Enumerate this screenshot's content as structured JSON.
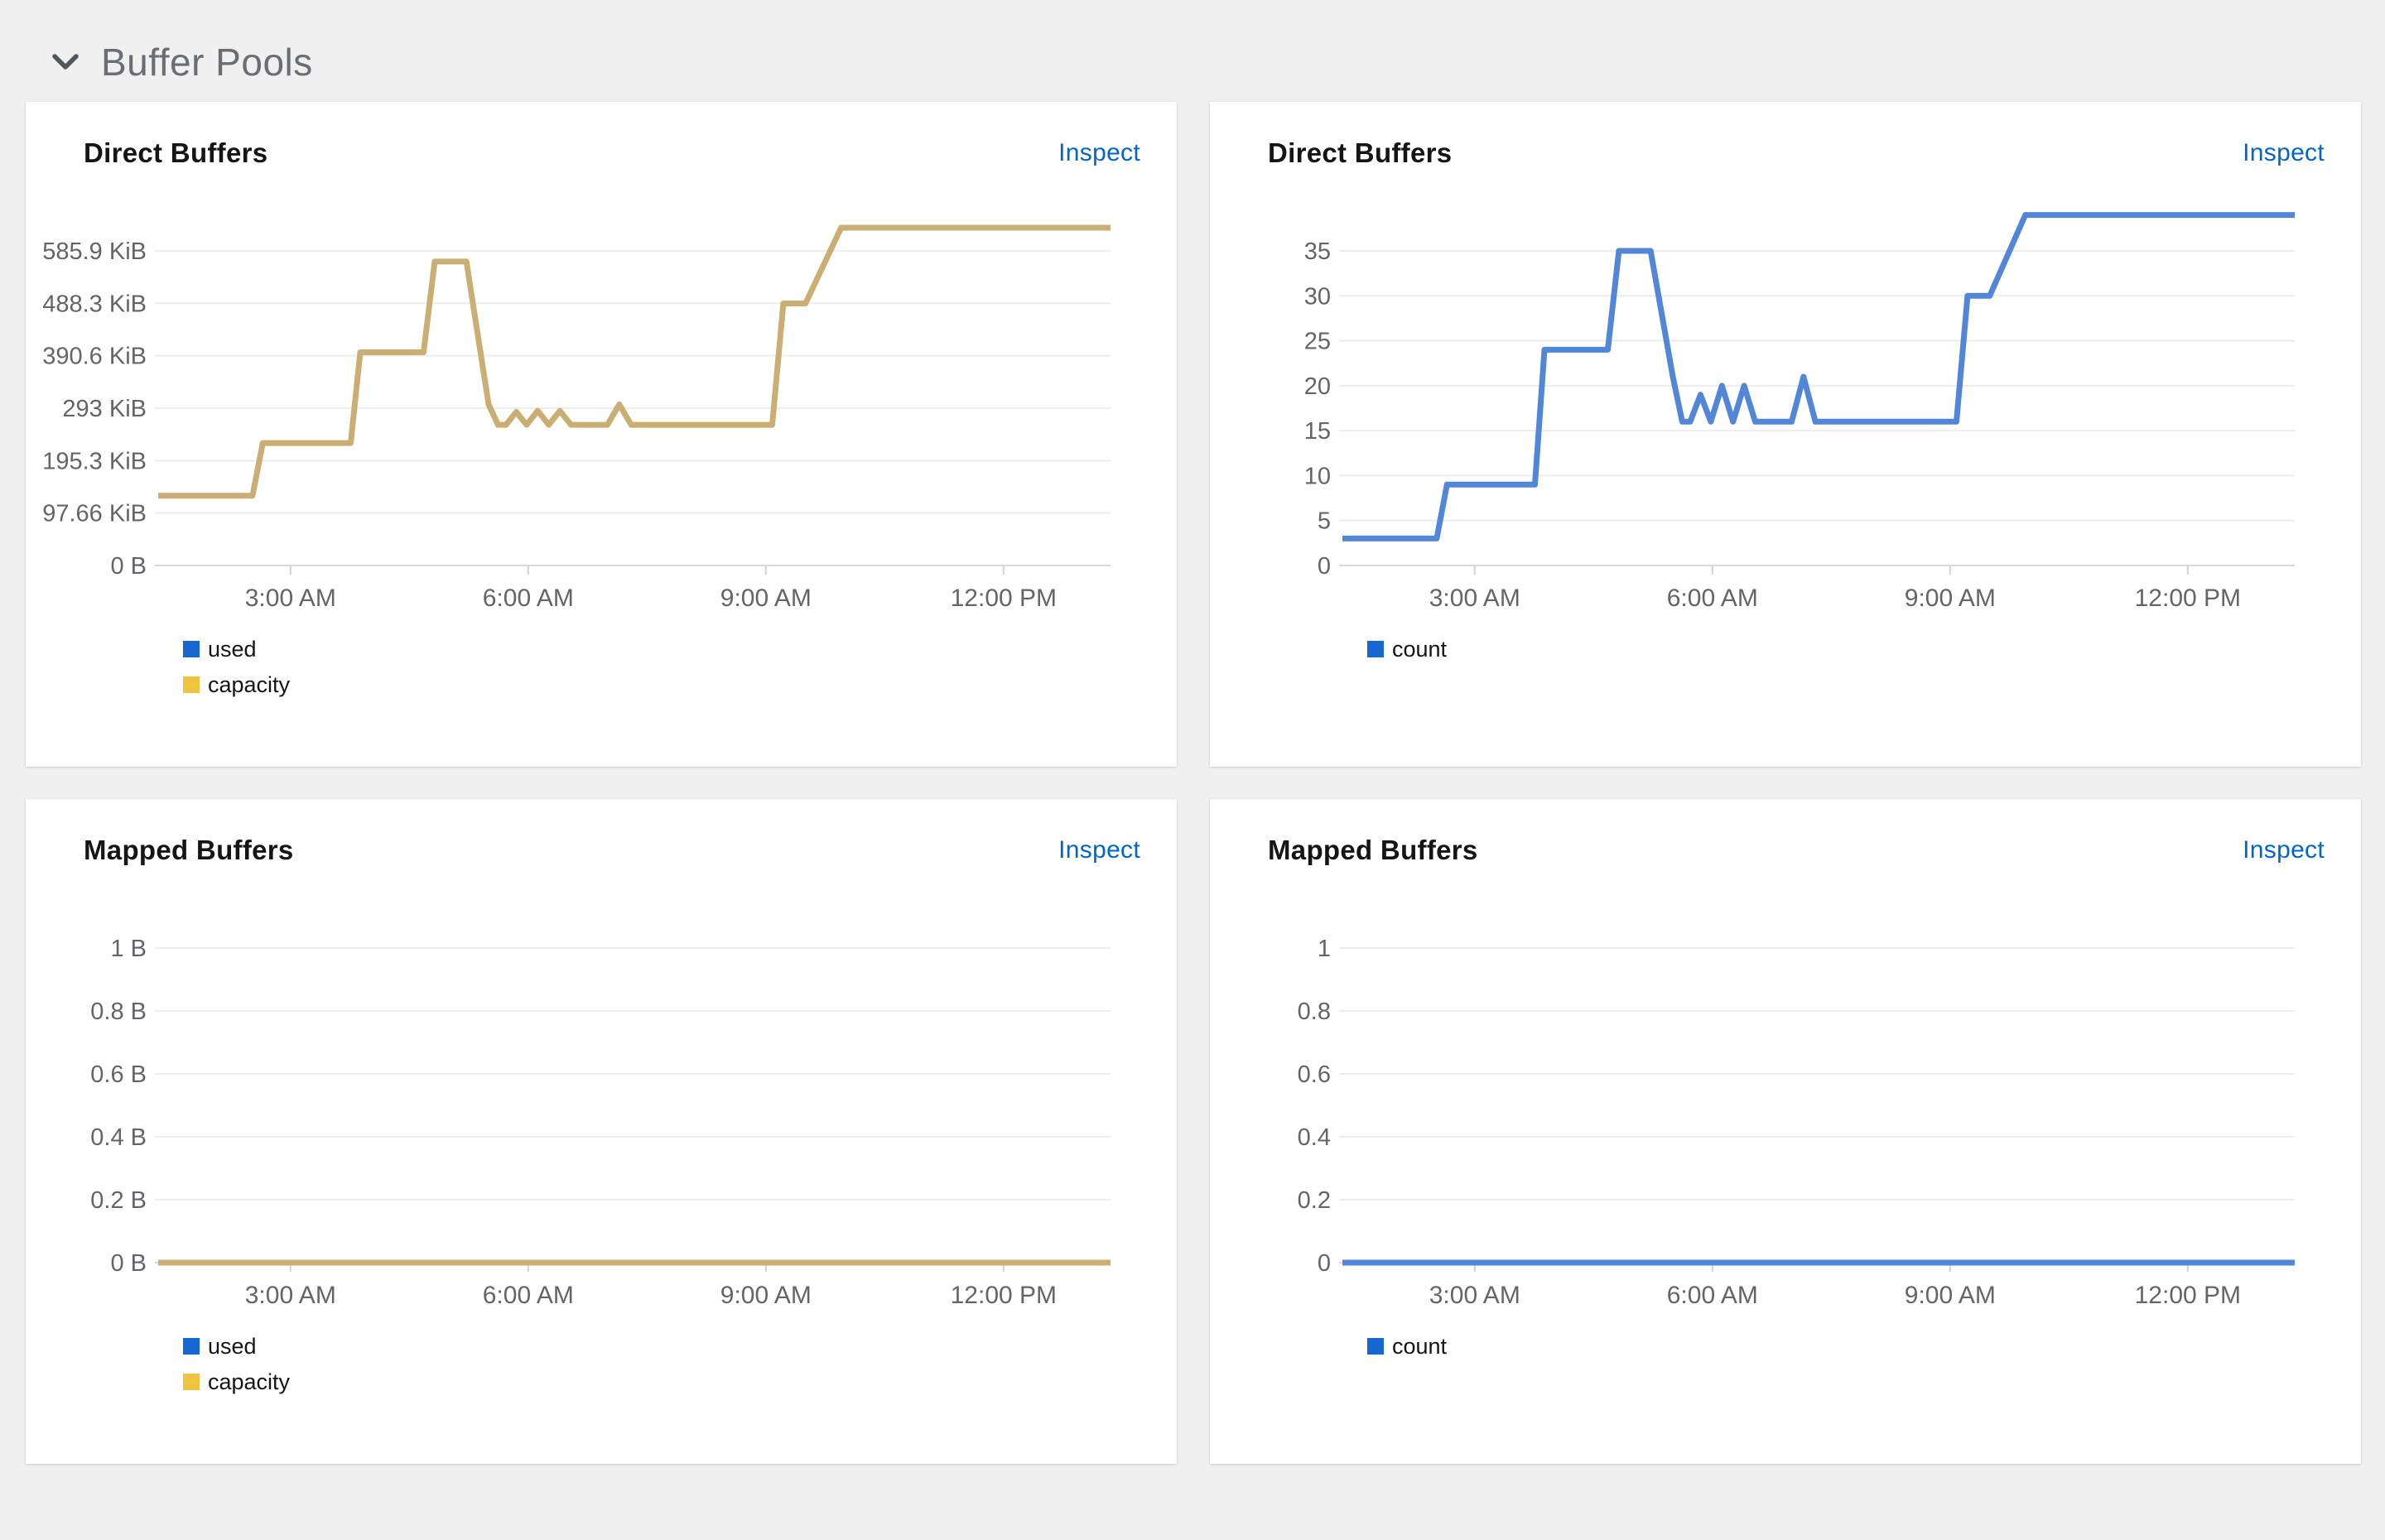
{
  "section": {
    "title": "Buffer Pools"
  },
  "colors": {
    "page_bg": "#f0f0f0",
    "card_bg": "#ffffff",
    "link": "#0066cc",
    "grid_line": "#ededed",
    "axis_line": "#d8d8d8",
    "tick_mark": "#d2d2d2",
    "axis_label": "#636569",
    "chart_title": "#151515",
    "section_title": "#6a6e73",
    "chevron": "#53565b",
    "legend_blue": "#1767d3",
    "legend_gold": "#f2c341",
    "line_tan": "#caae74",
    "line_blue": "#5286d9"
  },
  "chart_data": [
    {
      "type": "line",
      "title": "Direct Buffers",
      "inspect_label": "Inspect",
      "y_unit": "bytes",
      "grid": true,
      "legend_position": "bottom-left",
      "x_domain_hours": [
        1.33,
        13.35
      ],
      "x_ticks": [
        {
          "t": 3,
          "label": "3:00 AM"
        },
        {
          "t": 6,
          "label": "6:00 AM"
        },
        {
          "t": 9,
          "label": "9:00 AM"
        },
        {
          "t": 12,
          "label": "12:00 PM"
        }
      ],
      "y_ticks": [
        {
          "label": "585.9 KiB",
          "v": 585.9
        },
        {
          "label": "488.3 KiB",
          "v": 488.3
        },
        {
          "label": "390.6 KiB",
          "v": 390.6
        },
        {
          "label": "293 KiB",
          "v": 293
        },
        {
          "label": "195.3 KiB",
          "v": 195.3
        },
        {
          "label": "97.66 KiB",
          "v": 97.66
        },
        {
          "label": "0 B",
          "v": 0
        }
      ],
      "series": [
        {
          "name": "used",
          "swatch": "#1767d3",
          "stroke": "#1767d3",
          "width": 5,
          "points": [
            [
              1.33,
              130
            ],
            [
              2.52,
              130
            ],
            [
              2.65,
              228
            ],
            [
              3.76,
              228
            ],
            [
              3.88,
              397
            ],
            [
              4.68,
              397
            ],
            [
              4.82,
              566
            ],
            [
              5.22,
              566
            ],
            [
              5.5,
              300
            ],
            [
              5.62,
              262
            ],
            [
              5.72,
              262
            ],
            [
              5.85,
              286
            ],
            [
              5.98,
              262
            ],
            [
              6.12,
              288
            ],
            [
              6.26,
              262
            ],
            [
              6.4,
              288
            ],
            [
              6.54,
              262
            ],
            [
              7.0,
              262
            ],
            [
              7.15,
              300
            ],
            [
              7.3,
              262
            ],
            [
              9.08,
              262
            ],
            [
              9.22,
              488
            ],
            [
              9.5,
              488
            ],
            [
              9.95,
              629
            ],
            [
              13.35,
              629
            ]
          ]
        },
        {
          "name": "capacity",
          "swatch": "#f2c341",
          "stroke": "#caae74",
          "width": 7,
          "points": [
            [
              1.33,
              130
            ],
            [
              2.52,
              130
            ],
            [
              2.65,
              228
            ],
            [
              3.76,
              228
            ],
            [
              3.88,
              397
            ],
            [
              4.68,
              397
            ],
            [
              4.82,
              566
            ],
            [
              5.22,
              566
            ],
            [
              5.5,
              300
            ],
            [
              5.62,
              262
            ],
            [
              5.72,
              262
            ],
            [
              5.85,
              286
            ],
            [
              5.98,
              262
            ],
            [
              6.12,
              288
            ],
            [
              6.26,
              262
            ],
            [
              6.4,
              288
            ],
            [
              6.54,
              262
            ],
            [
              7.0,
              262
            ],
            [
              7.15,
              300
            ],
            [
              7.3,
              262
            ],
            [
              9.08,
              262
            ],
            [
              9.22,
              488
            ],
            [
              9.5,
              488
            ],
            [
              9.95,
              629
            ],
            [
              13.35,
              629
            ]
          ]
        }
      ]
    },
    {
      "type": "line",
      "title": "Direct Buffers",
      "inspect_label": "Inspect",
      "y_unit": "count",
      "grid": true,
      "legend_position": "bottom-left",
      "x_domain_hours": [
        1.33,
        13.35
      ],
      "x_ticks": [
        {
          "t": 3,
          "label": "3:00 AM"
        },
        {
          "t": 6,
          "label": "6:00 AM"
        },
        {
          "t": 9,
          "label": "9:00 AM"
        },
        {
          "t": 12,
          "label": "12:00 PM"
        }
      ],
      "y_ticks": [
        {
          "label": "35",
          "v": 35
        },
        {
          "label": "30",
          "v": 30
        },
        {
          "label": "25",
          "v": 25
        },
        {
          "label": "20",
          "v": 20
        },
        {
          "label": "15",
          "v": 15
        },
        {
          "label": "10",
          "v": 10
        },
        {
          "label": "5",
          "v": 5
        },
        {
          "label": "0",
          "v": 0
        }
      ],
      "series": [
        {
          "name": "count",
          "swatch": "#1767d3",
          "stroke": "#5286d9",
          "width": 7,
          "points": [
            [
              1.33,
              3
            ],
            [
              2.52,
              3
            ],
            [
              2.65,
              9
            ],
            [
              3.76,
              9
            ],
            [
              3.88,
              24
            ],
            [
              4.68,
              24
            ],
            [
              4.82,
              35
            ],
            [
              5.22,
              35
            ],
            [
              5.5,
              21
            ],
            [
              5.62,
              16
            ],
            [
              5.72,
              16
            ],
            [
              5.85,
              19
            ],
            [
              5.98,
              16
            ],
            [
              6.12,
              20
            ],
            [
              6.26,
              16
            ],
            [
              6.4,
              20
            ],
            [
              6.54,
              16
            ],
            [
              7.0,
              16
            ],
            [
              7.15,
              21
            ],
            [
              7.3,
              16
            ],
            [
              9.08,
              16
            ],
            [
              9.22,
              30
            ],
            [
              9.5,
              30
            ],
            [
              9.95,
              39
            ],
            [
              13.35,
              39
            ]
          ]
        }
      ]
    },
    {
      "type": "line",
      "title": "Mapped Buffers",
      "inspect_label": "Inspect",
      "y_unit": "bytes",
      "grid": true,
      "legend_position": "bottom-left",
      "x_domain_hours": [
        1.33,
        13.35
      ],
      "x_ticks": [
        {
          "t": 3,
          "label": "3:00 AM"
        },
        {
          "t": 6,
          "label": "6:00 AM"
        },
        {
          "t": 9,
          "label": "9:00 AM"
        },
        {
          "t": 12,
          "label": "12:00 PM"
        }
      ],
      "y_ticks": [
        {
          "label": "1 B",
          "v": 1
        },
        {
          "label": "0.8 B",
          "v": 0.8
        },
        {
          "label": "0.6 B",
          "v": 0.6
        },
        {
          "label": "0.4 B",
          "v": 0.4
        },
        {
          "label": "0.2 B",
          "v": 0.2
        },
        {
          "label": "0 B",
          "v": 0
        }
      ],
      "series": [
        {
          "name": "used",
          "swatch": "#1767d3",
          "stroke": "#1767d3",
          "width": 5,
          "points": [
            [
              1.33,
              0
            ],
            [
              13.35,
              0
            ]
          ]
        },
        {
          "name": "capacity",
          "swatch": "#f2c341",
          "stroke": "#caae74",
          "width": 7,
          "points": [
            [
              1.33,
              0
            ],
            [
              13.35,
              0
            ]
          ]
        }
      ]
    },
    {
      "type": "line",
      "title": "Mapped Buffers",
      "inspect_label": "Inspect",
      "y_unit": "count",
      "grid": true,
      "legend_position": "bottom-left",
      "x_domain_hours": [
        1.33,
        13.35
      ],
      "x_ticks": [
        {
          "t": 3,
          "label": "3:00 AM"
        },
        {
          "t": 6,
          "label": "6:00 AM"
        },
        {
          "t": 9,
          "label": "9:00 AM"
        },
        {
          "t": 12,
          "label": "12:00 PM"
        }
      ],
      "y_ticks": [
        {
          "label": "1",
          "v": 1
        },
        {
          "label": "0.8",
          "v": 0.8
        },
        {
          "label": "0.6",
          "v": 0.6
        },
        {
          "label": "0.4",
          "v": 0.4
        },
        {
          "label": "0.2",
          "v": 0.2
        },
        {
          "label": "0",
          "v": 0
        }
      ],
      "series": [
        {
          "name": "count",
          "swatch": "#1767d3",
          "stroke": "#5286d9",
          "width": 7,
          "points": [
            [
              1.33,
              0
            ],
            [
              13.35,
              0
            ]
          ]
        }
      ]
    }
  ]
}
